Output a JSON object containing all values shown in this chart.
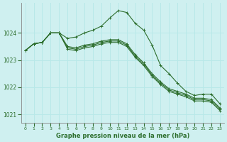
{
  "xlabel": "Graphe pression niveau de la mer (hPa)",
  "background_color": "#cff0f0",
  "grid_color": "#b8e8e8",
  "line_color": "#2d6e2d",
  "xlim": [
    -0.5,
    23.5
  ],
  "ylim": [
    1020.7,
    1025.1
  ],
  "yticks": [
    1021,
    1022,
    1023,
    1024
  ],
  "xticks": [
    0,
    1,
    2,
    3,
    4,
    5,
    6,
    7,
    8,
    9,
    10,
    11,
    12,
    13,
    14,
    15,
    16,
    17,
    18,
    19,
    20,
    21,
    22,
    23
  ],
  "lines": [
    [
      1023.35,
      1023.6,
      1023.65,
      1024.0,
      1024.0,
      1023.8,
      1023.85,
      1024.0,
      1024.1,
      1024.25,
      1024.55,
      1024.82,
      1024.75,
      1024.35,
      1024.1,
      1023.55,
      1022.8,
      1022.5,
      1022.15,
      1021.85,
      1021.7,
      1021.75,
      1021.75,
      1021.4
    ],
    [
      1023.35,
      1023.6,
      1023.65,
      1024.0,
      1024.0,
      1023.5,
      1023.45,
      1023.55,
      1023.6,
      1023.7,
      1023.75,
      1023.75,
      1023.6,
      1023.2,
      1022.9,
      1022.5,
      1022.2,
      1021.95,
      1021.85,
      1021.75,
      1021.6,
      1021.6,
      1021.55,
      1021.25
    ],
    [
      1023.35,
      1023.6,
      1023.65,
      1024.0,
      1024.0,
      1023.45,
      1023.4,
      1023.5,
      1023.55,
      1023.65,
      1023.7,
      1023.7,
      1023.55,
      1023.15,
      1022.85,
      1022.45,
      1022.15,
      1021.9,
      1021.8,
      1021.7,
      1021.55,
      1021.55,
      1021.5,
      1021.2
    ],
    [
      1023.35,
      1023.6,
      1023.65,
      1024.0,
      1024.0,
      1023.4,
      1023.35,
      1023.45,
      1023.5,
      1023.6,
      1023.65,
      1023.65,
      1023.5,
      1023.1,
      1022.8,
      1022.4,
      1022.1,
      1021.85,
      1021.75,
      1021.65,
      1021.5,
      1021.5,
      1021.45,
      1021.15
    ]
  ]
}
